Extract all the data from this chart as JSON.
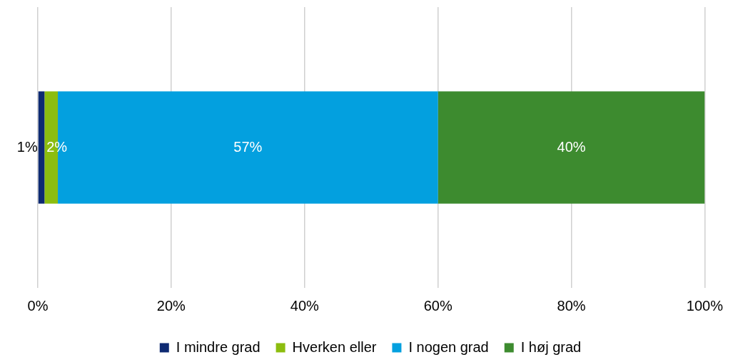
{
  "chart_data": {
    "type": "bar",
    "orientation": "horizontal",
    "stacked": true,
    "categories": [
      null
    ],
    "series": [
      {
        "name": "I mindre grad",
        "color": "#0e2a72",
        "values": [
          1
        ],
        "value_labels": [
          "1%"
        ]
      },
      {
        "name": "Hverken eller",
        "color": "#8cbd0f",
        "values": [
          2
        ],
        "value_labels": [
          "2%"
        ]
      },
      {
        "name": "I nogen grad",
        "color": "#03a0df",
        "values": [
          57
        ],
        "value_labels": [
          "57%"
        ]
      },
      {
        "name": "I høj grad",
        "color": "#3d8b2f",
        "values": [
          40
        ],
        "value_labels": [
          "40%"
        ]
      }
    ],
    "xlim": [
      0,
      100
    ],
    "xticks": [
      {
        "value": 0,
        "label": "0%"
      },
      {
        "value": 20,
        "label": "20%"
      },
      {
        "value": 40,
        "label": "40%"
      },
      {
        "value": 60,
        "label": "60%"
      },
      {
        "value": 80,
        "label": "80%"
      },
      {
        "value": 100,
        "label": "100%"
      }
    ],
    "grid": "x",
    "legend": "bottom"
  }
}
